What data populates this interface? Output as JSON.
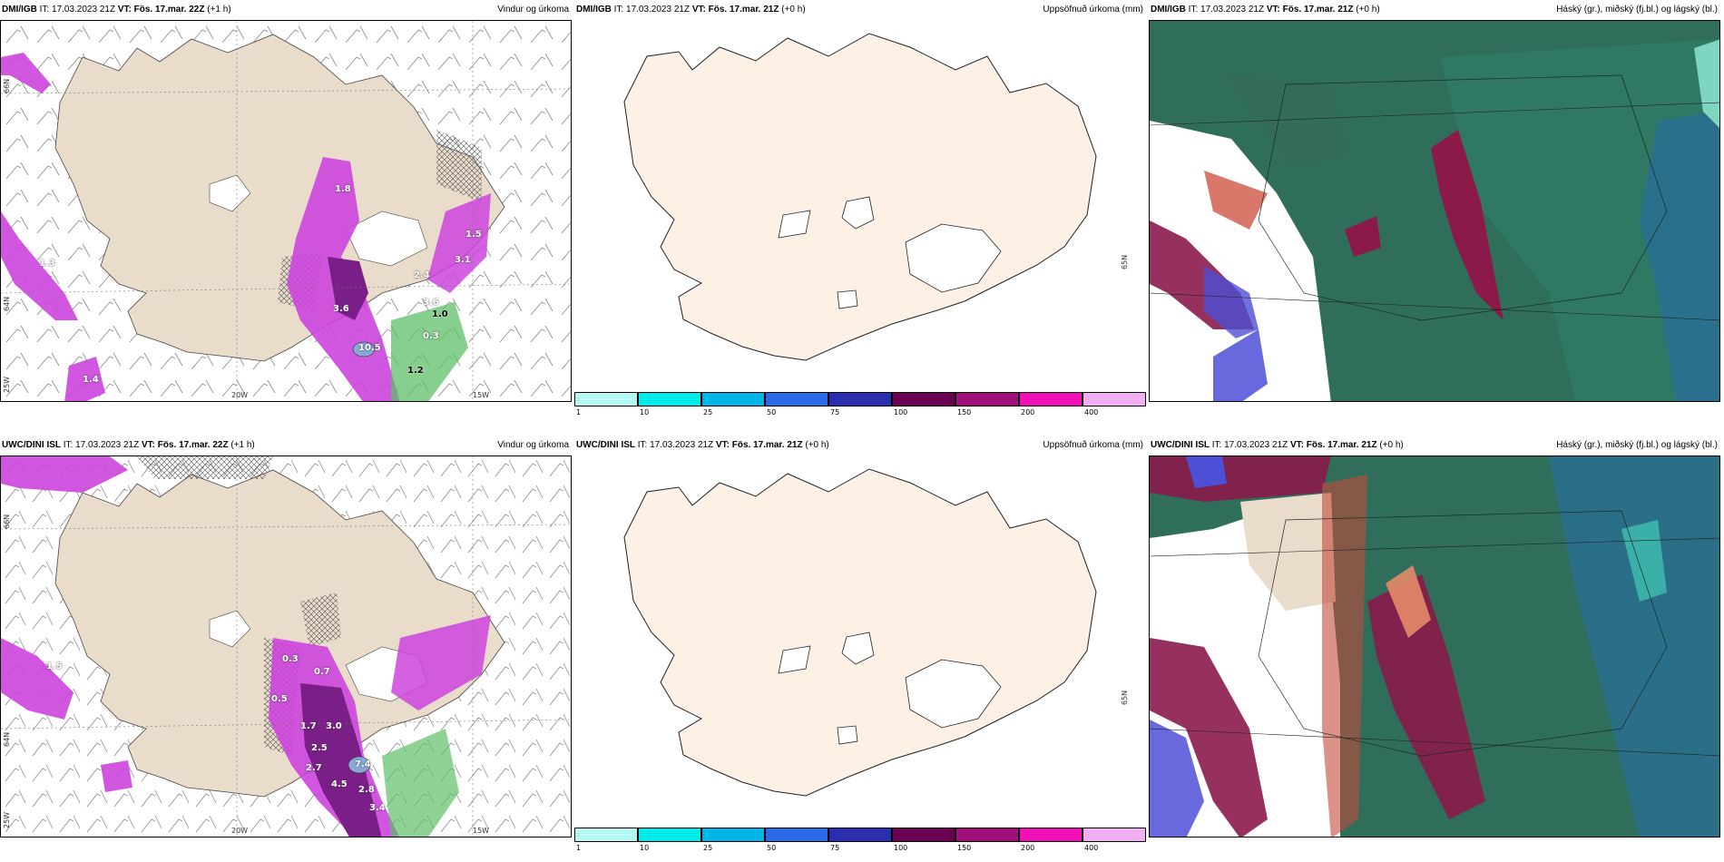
{
  "colors": {
    "land": "#eadccb",
    "precip_magenta": "#cc44dd",
    "precip_purple": "#7a1f88",
    "snow_green": "#5fbf6a",
    "cloud_high": "#2f6e5b",
    "cloud_mid": "#8b1a4a",
    "cloud_low": "#2a6f90"
  },
  "top": {
    "wind": {
      "model": "DMI/IGB",
      "it": "IT: 17.03.2023 21Z",
      "vt": "VT: Fös. 17.mar. 22Z",
      "lead": "(+1 h)",
      "title": "Vindur og úrkoma",
      "lat_label_1": "66N",
      "lat_label_2": "64N",
      "lon_label_1": "25W",
      "lon_label_2": "20W",
      "lon_label_3": "15W",
      "values": [
        {
          "text": "1.8"
        },
        {
          "text": "1.3"
        },
        {
          "text": "3.6"
        },
        {
          "text": "10.5"
        },
        {
          "text": "3.6"
        },
        {
          "text": "1.0"
        },
        {
          "text": "0.3"
        },
        {
          "text": "1.2"
        },
        {
          "text": "3.1"
        },
        {
          "text": "1.5"
        },
        {
          "text": "1.4"
        },
        {
          "text": "2.4"
        }
      ]
    },
    "accum": {
      "model": "DMI/IGB",
      "it": "IT: 17.03.2023 21Z",
      "vt": "VT: Fös. 17.mar. 21Z",
      "lead": "(+0 h)",
      "title": "Uppsöfnuð úrkoma (mm)",
      "lat_label": "65N"
    },
    "cloud": {
      "model": "DMI/IGB",
      "it": "IT: 17.03.2023 21Z",
      "vt": "VT: Fös. 17.mar. 21Z",
      "lead": "(+0 h)",
      "title": "Háský (gr.), miðský (fj.bl.) og lágský (bl.)"
    }
  },
  "bottom": {
    "wind": {
      "model": "UWC/DINI ISL",
      "it": "IT: 17.03.2023 21Z",
      "vt": "VT: Fös. 17.mar. 22Z",
      "lead": "(+1 h)",
      "title": "Vindur og úrkoma",
      "lat_label_1": "66N",
      "lat_label_2": "64N",
      "lon_label_1": "25W",
      "lon_label_2": "20W",
      "lon_label_3": "15W",
      "values": [
        {
          "text": "0.3"
        },
        {
          "text": "0.7"
        },
        {
          "text": "0.5"
        },
        {
          "text": "1.7"
        },
        {
          "text": "3.0"
        },
        {
          "text": "2.5"
        },
        {
          "text": "2.7"
        },
        {
          "text": "7.4"
        },
        {
          "text": "4.5"
        },
        {
          "text": "2.8"
        },
        {
          "text": "3.4"
        },
        {
          "text": "1.5"
        }
      ]
    },
    "accum": {
      "model": "UWC/DINI ISL",
      "it": "IT: 17.03.2023 21Z",
      "vt": "VT: Fös. 17.mar. 21Z",
      "lead": "(+0 h)",
      "title": "Uppsöfnuð úrkoma (mm)",
      "lat_label": "65N"
    },
    "cloud": {
      "model": "UWC/DINI ISL",
      "it": "IT: 17.03.2023 21Z",
      "vt": "VT: Fös. 17.mar. 21Z",
      "lead": "(+0 h)",
      "title": "Háský (gr.), miðský (fj.bl.) og lágský (bl.)"
    }
  },
  "colorbar": {
    "ticks": [
      "1",
      "10",
      "25",
      "50",
      "75",
      "100",
      "150",
      "200",
      "400"
    ],
    "colors": [
      "#b8f5f5",
      "#00eaea",
      "#00b4e6",
      "#2a6ae6",
      "#2c30b0",
      "#6a0050",
      "#a0107a",
      "#f010b4",
      "#f0b0f0"
    ]
  }
}
